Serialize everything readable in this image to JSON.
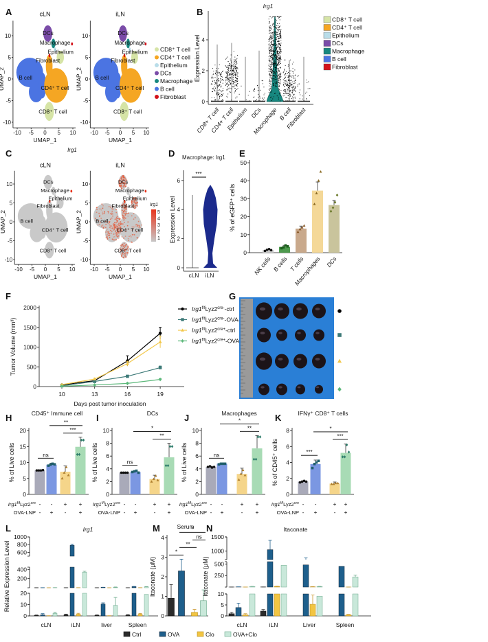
{
  "figure": {
    "panel_labels": [
      "A",
      "B",
      "C",
      "D",
      "E",
      "F",
      "G",
      "H",
      "I",
      "J",
      "K",
      "L",
      "M",
      "N"
    ]
  },
  "chart_data": [
    {
      "panel": "A",
      "type": "scatter",
      "subtitles": [
        "cLN",
        "iLN"
      ],
      "xlabel": "UMAP_1",
      "ylabel": "UMAP_2",
      "xticks": [
        -10,
        -5,
        0,
        5,
        10
      ],
      "yticks": [
        10,
        5,
        0,
        -5,
        -10
      ],
      "clusters": [
        {
          "name": "CD8⁺ T cell",
          "color": "#d6e4a6"
        },
        {
          "name": "CD4⁺ T cell",
          "color": "#f5a623"
        },
        {
          "name": "Epithelium",
          "color": "#b9dde9"
        },
        {
          "name": "DCs",
          "color": "#7a4ca8"
        },
        {
          "name": "Macrophage",
          "color": "#17877f"
        },
        {
          "name": "B cell",
          "color": "#4b74e2"
        },
        {
          "name": "Fibroblast",
          "color": "#d3121a"
        }
      ],
      "cluster_labels": [
        "DCs",
        "Macrophage",
        "Epithelium",
        "Fibroblast",
        "B cell",
        "CD4⁺ T cell",
        "CD8⁺ T cell"
      ],
      "legend_placement": "right"
    },
    {
      "panel": "B",
      "type": "violin",
      "title": "Irg1",
      "ylabel": "Expression Level",
      "categories": [
        "CD8+ T cell",
        "CD4+ T cell",
        "Epithelium",
        "DCs",
        "Macrophage",
        "B cell",
        "Fibroblast"
      ],
      "max_values": [
        3.7,
        3.8,
        2.9,
        3.3,
        5.5,
        2.7,
        2.9
      ],
      "yticks": [
        0,
        2,
        4
      ],
      "legend": [
        "CD8⁺ T cell",
        "CD4⁺ T cell",
        "Epithelium",
        "DCs",
        "Macrophage",
        "B cell",
        "Fibroblast"
      ],
      "legend_colors": [
        "#d6e4a6",
        "#f5a623",
        "#b9dde9",
        "#7a4ca8",
        "#17877f",
        "#4b74e2",
        "#d3121a"
      ],
      "legend_placement": "right"
    },
    {
      "panel": "C",
      "type": "scatter",
      "title": "Irg1",
      "subtitles": [
        "cLN",
        "iLN"
      ],
      "xlabel": "UMAP_1",
      "ylabel": "UMAP_2",
      "xticks": [
        -10,
        -5,
        0,
        5,
        10
      ],
      "yticks": [
        10,
        5,
        0,
        -5,
        -10
      ],
      "cluster_labels": [
        "DCs",
        "Macrophage",
        "Epithelium",
        "Fibroblast",
        "B cell",
        "CD4⁺ T cell",
        "CD8⁺ T cell"
      ],
      "colorbar_title": "Irg1",
      "colorbar_ticks": [
        5,
        4,
        3,
        2,
        1
      ],
      "colors": {
        "low": "#c8c8c8",
        "high": "#e8341c"
      }
    },
    {
      "panel": "D",
      "type": "violin",
      "title": "Macrophage: Irg1",
      "ylabel": "Expression Level",
      "categories": [
        "cLN",
        "iLN"
      ],
      "yticks": [
        0,
        2,
        4,
        6
      ],
      "max_values": [
        5.0,
        5.7
      ],
      "significance": "***",
      "color": "#1b2a8c"
    },
    {
      "panel": "E",
      "type": "bar",
      "ylabel": "% of eGFP⁺ cells",
      "categories": [
        "NK cells",
        "B cells",
        "T cells",
        "Macrophages",
        "DCs"
      ],
      "values": [
        1.5,
        3.2,
        13.4,
        34.5,
        26.5
      ],
      "errors": [
        0.4,
        0.9,
        1.4,
        4.8,
        2.6
      ],
      "points": [
        [
          1.0,
          1.6,
          2.0,
          1.4
        ],
        [
          2.5,
          3.0,
          4.0,
          3.5
        ],
        [
          11.5,
          13.0,
          14.0,
          15.0
        ],
        [
          27,
          33,
          40,
          45
        ],
        [
          23,
          25,
          28,
          32
        ]
      ],
      "colors": [
        "#c9c9c9",
        "#4e9a4e",
        "#c9a98c",
        "#f4d898",
        "#c9c49c"
      ],
      "point_colors": [
        "#111111",
        "#1c5e1c",
        "#8a5a2a",
        "#8a6a22",
        "#6b7a2a"
      ],
      "yticks": [
        0,
        10,
        20,
        30,
        40,
        50
      ],
      "ylim": [
        0,
        50
      ]
    },
    {
      "panel": "F",
      "type": "line",
      "xlabel": "Days post tumor inoculation",
      "ylabel": "Tumor Volume (mm³)",
      "x": [
        10,
        13,
        16,
        19
      ],
      "xticks": [
        10,
        13,
        16,
        19
      ],
      "yticks": [
        0,
        500,
        1000,
        1500,
        2000
      ],
      "ylim": [
        0,
        2000
      ],
      "series": [
        {
          "gene": "Irg1",
          "gsup": "f/f",
          "base": "Lyz2",
          "bsup": "cre-",
          "suffix": "-ctrl",
          "values": [
            40,
            150,
            650,
            1350
          ],
          "errors": [
            10,
            20,
            130,
            150
          ],
          "color": "#000000",
          "marker": "circle"
        },
        {
          "gene": "Irg1",
          "gsup": "f/f",
          "base": "Lyz2",
          "bsup": "cre-",
          "suffix": "-OVA-LNP",
          "values": [
            20,
            130,
            260,
            480
          ],
          "errors": [
            5,
            15,
            30,
            40
          ],
          "color": "#3d7a78",
          "marker": "square"
        },
        {
          "gene": "Irg1",
          "gsup": "f/f",
          "base": "Lyz2",
          "bsup": "cre+",
          "suffix": "-ctrl",
          "values": [
            50,
            190,
            580,
            1130
          ],
          "errors": [
            10,
            25,
            60,
            150
          ],
          "color": "#f2c84b",
          "marker": "triangle"
        },
        {
          "gene": "Irg1",
          "gsup": "f/f",
          "base": "Lyz2",
          "bsup": "cre+",
          "suffix": "-OVA-LNP",
          "values": [
            10,
            40,
            80,
            180
          ],
          "errors": [
            5,
            8,
            15,
            20
          ],
          "color": "#5cb87a",
          "marker": "diamond"
        }
      ],
      "significance": [
        {
          "text": "***",
          "from": 0,
          "to": 1
        },
        {
          "text": "***",
          "from": 2,
          "to": 3
        },
        {
          "text": "*",
          "from": 1,
          "to": 3
        }
      ],
      "legend_placement": "right"
    },
    {
      "panel": "H",
      "type": "bar",
      "title": "CD45⁺ Immune cell",
      "ylabel": "% of Live cells",
      "values": [
        7.5,
        9.3,
        7.1,
        14.9
      ],
      "errors": [
        0.1,
        0.5,
        1.8,
        3.0
      ],
      "points": [
        [
          7.5,
          7.5,
          7.5,
          7.6
        ],
        [
          9.0,
          9.3,
          9.6,
          9.4
        ],
        [
          5.0,
          6.8,
          8.5,
          6.0
        ],
        [
          12.5,
          12.5,
          17.0,
          17.0
        ]
      ],
      "yticks": [
        0,
        5,
        10,
        15,
        20
      ],
      "ylim": [
        0,
        20
      ],
      "significance": [
        {
          "text": "ns",
          "from": 0,
          "to": 1
        },
        {
          "text": "***",
          "from": 2,
          "to": 3
        },
        {
          "text": "**",
          "from": 1,
          "to": 3
        }
      ]
    },
    {
      "panel": "I",
      "type": "bar",
      "title": "DCs",
      "ylabel": "% of Live cells",
      "values": [
        3.4,
        3.5,
        2.4,
        5.8
      ],
      "errors": [
        0.1,
        0.2,
        0.6,
        2.2
      ],
      "points": [
        [
          3.4,
          3.4,
          3.4,
          3.4
        ],
        [
          3.5,
          3.6,
          3.7,
          3.4
        ],
        [
          2.0,
          2.4,
          2.9,
          2.2
        ],
        [
          4.5,
          4.5,
          7.5,
          7.5
        ]
      ],
      "yticks": [
        0,
        2,
        4,
        6,
        8,
        10
      ],
      "ylim": [
        0,
        10
      ],
      "significance": [
        {
          "text": "ns",
          "from": 0,
          "to": 1
        },
        {
          "text": "**",
          "from": 2,
          "to": 3
        },
        {
          "text": "*",
          "from": 1,
          "to": 3
        }
      ]
    },
    {
      "panel": "J",
      "type": "bar",
      "title": "Macrophages",
      "ylabel": "% of Live cells",
      "values": [
        4.3,
        4.8,
        3.2,
        7.2
      ],
      "errors": [
        0.1,
        0.1,
        0.9,
        2.0
      ],
      "points": [
        [
          4.3,
          4.4,
          4.2,
          4.3
        ],
        [
          4.7,
          4.8,
          4.8,
          4.8
        ],
        [
          2.3,
          3.2,
          3.8,
          3.0
        ],
        [
          5.5,
          5.5,
          9.0,
          9.0
        ]
      ],
      "yticks": [
        0,
        2,
        4,
        6,
        8,
        10
      ],
      "ylim": [
        0,
        10
      ],
      "significance": [
        {
          "text": "ns",
          "from": 0,
          "to": 1
        },
        {
          "text": "**",
          "from": 2,
          "to": 3
        },
        {
          "text": "*",
          "from": 1,
          "to": 3
        }
      ]
    },
    {
      "panel": "K",
      "type": "bar",
      "title": "IFNγ⁺ CD8⁺ T cells",
      "ylabel": "% of CD45⁺ cells",
      "values": [
        1.6,
        3.8,
        1.35,
        5.2
      ],
      "errors": [
        0.1,
        0.5,
        0.2,
        1.1
      ],
      "points": [
        [
          1.5,
          1.6,
          1.7,
          1.6
        ],
        [
          3.3,
          3.8,
          4.0,
          4.2
        ],
        [
          1.3,
          1.3,
          1.4,
          1.4
        ],
        [
          4.7,
          4.7,
          6.2,
          5.3
        ]
      ],
      "yticks": [
        0,
        2,
        4,
        6,
        8
      ],
      "ylim": [
        0,
        8
      ],
      "significance": [
        {
          "text": "***",
          "from": 0,
          "to": 1
        },
        {
          "text": "***",
          "from": 2,
          "to": 3
        },
        {
          "text": "*",
          "from": 1,
          "to": 3
        }
      ]
    },
    {
      "panel": "L",
      "type": "bar",
      "title": "Irg1",
      "ylabel": "Relative Expression Level",
      "categories": [
        "cLN",
        "iLN",
        "liver",
        "Spleen"
      ],
      "axis_segments": [
        [
          0,
          20
        ],
        [
          0,
          450
        ],
        [
          500,
          1000
        ]
      ],
      "yticks": [
        [
          0,
          10,
          20
        ],
        [
          200,
          400
        ],
        [
          600,
          800,
          1000
        ]
      ],
      "series": [
        {
          "name": "Ctrl",
          "values": [
            0.5,
            1.0,
            0.6,
            0.7
          ],
          "errors": [
            0.3,
            0.6,
            0.3,
            0.4
          ]
        },
        {
          "name": "OVA",
          "values": [
            1.0,
            780,
            10.5,
            25
          ],
          "errors": [
            1.0,
            35,
            1.0,
            5
          ]
        },
        {
          "name": "Clo",
          "values": [
            0.1,
            1.5,
            0.1,
            1.5
          ],
          "errors": [
            0.1,
            0.8,
            0.1,
            0.6
          ]
        },
        {
          "name": "OVA+Clo",
          "values": [
            2.2,
            340,
            9.3,
            19
          ],
          "errors": [
            1.0,
            20,
            7,
            6
          ]
        }
      ]
    },
    {
      "panel": "M",
      "type": "bar",
      "title": "Serum",
      "ylabel": "Itaconate (μM)",
      "series_names": [
        "Ctrl",
        "OVA",
        "Clo",
        "OVA+Clo"
      ],
      "values": [
        0.9,
        2.3,
        0.18,
        0.78
      ],
      "errors": [
        0.7,
        0.6,
        0.15,
        0.55
      ],
      "yticks": [
        0,
        1,
        2,
        3,
        4
      ],
      "ylim": [
        0,
        4
      ],
      "significance": [
        {
          "text": "*",
          "from": 0,
          "to": 1
        },
        {
          "text": "**",
          "from": 1,
          "to": 2
        },
        {
          "text": "ns",
          "from": 2,
          "to": 3
        },
        {
          "text": "*",
          "from": 1,
          "to": 3
        }
      ]
    },
    {
      "panel": "N",
      "type": "bar",
      "title": "Itaconate",
      "ylabel": "Itaconate (μM)",
      "categories": [
        "cLN",
        "iLN",
        "Liver",
        "Spleen"
      ],
      "axis_segments": [
        [
          0,
          10
        ],
        [
          0,
          550
        ],
        [
          700,
          1500
        ]
      ],
      "yticks": [
        [
          0,
          5,
          10
        ],
        [
          250,
          500
        ],
        [
          1000,
          1500
        ]
      ],
      "series": [
        {
          "name": "Ctrl",
          "values": [
            1.0,
            2.2,
            0,
            0
          ],
          "errors": [
            0.6,
            0.7,
            0,
            0
          ]
        },
        {
          "name": "OVA",
          "values": [
            3.8,
            1050,
            480,
            450
          ],
          "errors": [
            2.0,
            330,
            280,
            250
          ]
        },
        {
          "name": "Clo",
          "values": [
            0.5,
            15,
            5.3,
            0.5
          ],
          "errors": [
            0.5,
            5,
            4.2,
            0.2
          ]
        },
        {
          "name": "OVA+Clo",
          "values": [
            12,
            470,
            9,
            220
          ],
          "errors": [
            3,
            230,
            6,
            40
          ]
        }
      ]
    }
  ],
  "photo_G": {
    "row_markers": [
      "circle",
      "square",
      "triangle",
      "diamond"
    ],
    "marker_colors": [
      "#000000",
      "#3d7a78",
      "#f2c84b",
      "#5cb87a"
    ],
    "background": "#2a7fd6"
  },
  "conditions_HK": {
    "gene": "Irg1",
    "gsup": "f/f",
    "base": "Lyz2",
    "bsup": "cre",
    "row1_signs": [
      "-",
      "-",
      "+",
      "+"
    ],
    "row2_label": "OVA-LNP",
    "row2_signs": [
      "-",
      "+",
      "-",
      "+"
    ],
    "bar_colors": [
      "#a9aab9",
      "#7b97e2",
      "#f5d58a",
      "#a8dbb5"
    ],
    "point_colors": [
      "#111111",
      "#1f5e6b",
      "#b08030",
      "#2e7d6b"
    ]
  },
  "legend_LMN": {
    "items": [
      "Ctrl",
      "OVA",
      "Clo",
      "OVA+Clo"
    ],
    "colors": [
      "#2b2b2b",
      "#1e5f8c",
      "#f2c542",
      "#c9e8da"
    ]
  }
}
